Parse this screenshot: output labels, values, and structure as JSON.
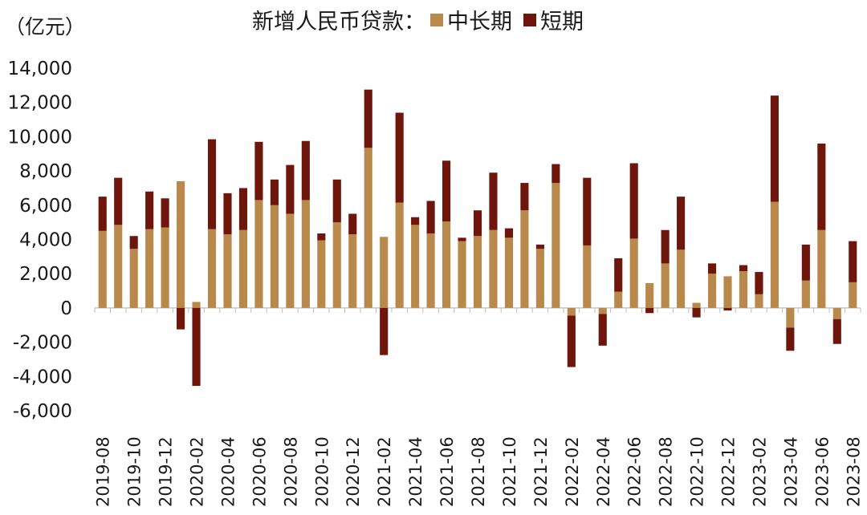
{
  "chart_data": {
    "type": "bar",
    "stacked": true,
    "title": "新增人民币贷款：",
    "unit_label": "（亿元）",
    "ylim": [
      -6000,
      14000
    ],
    "yticks": [
      14000,
      12000,
      10000,
      8000,
      6000,
      4000,
      2000,
      0,
      -2000,
      -4000,
      -6000
    ],
    "ytick_labels": [
      "14,000",
      "12,000",
      "10,000",
      "8,000",
      "6,000",
      "4,000",
      "2,000",
      "0",
      "-2,000",
      "-4,000",
      "-6,000"
    ],
    "categories": [
      "2019-08",
      "2019-09",
      "2019-10",
      "2019-11",
      "2019-12",
      "2020-01",
      "2020-02",
      "2020-03",
      "2020-04",
      "2020-05",
      "2020-06",
      "2020-07",
      "2020-08",
      "2020-09",
      "2020-10",
      "2020-11",
      "2020-12",
      "2021-01",
      "2021-02",
      "2021-03",
      "2021-04",
      "2021-05",
      "2021-06",
      "2021-07",
      "2021-08",
      "2021-09",
      "2021-10",
      "2021-11",
      "2021-12",
      "2022-01",
      "2022-02",
      "2022-03",
      "2022-04",
      "2022-05",
      "2022-06",
      "2022-07",
      "2022-08",
      "2022-09",
      "2022-10",
      "2022-11",
      "2022-12",
      "2023-01",
      "2023-02",
      "2023-03",
      "2023-04",
      "2023-05",
      "2023-06",
      "2023-07",
      "2023-08"
    ],
    "xtick_labels": [
      "2019-08",
      "2019-10",
      "2019-12",
      "2020-02",
      "2020-04",
      "2020-06",
      "2020-08",
      "2020-10",
      "2020-12",
      "2021-02",
      "2021-04",
      "2021-06",
      "2021-08",
      "2021-10",
      "2021-12",
      "2022-02",
      "2022-04",
      "2022-06",
      "2022-08",
      "2022-10",
      "2022-12",
      "2023-02",
      "2023-04",
      "2023-06",
      "2023-08"
    ],
    "legend_position": "top",
    "series": [
      {
        "name": "中长期",
        "color": "#b8894a",
        "values": [
          4500,
          4850,
          3450,
          4600,
          4700,
          7400,
          350,
          4600,
          4300,
          4550,
          6300,
          6000,
          5500,
          6300,
          3950,
          5000,
          4300,
          9350,
          4150,
          6150,
          4850,
          4350,
          5050,
          3900,
          4200,
          4550,
          4100,
          5700,
          3450,
          7300,
          -450,
          3650,
          -350,
          950,
          4050,
          1450,
          2600,
          3400,
          300,
          2000,
          1850,
          2150,
          800,
          6200,
          -1150,
          1600,
          4550,
          -650,
          1500
        ]
      },
      {
        "name": "短期",
        "color": "#6e160c",
        "values": [
          2000,
          2750,
          750,
          2200,
          1700,
          -1250,
          -4550,
          5250,
          2400,
          2450,
          3400,
          1500,
          2850,
          3450,
          400,
          2500,
          1200,
          3400,
          -2750,
          5250,
          450,
          1900,
          3550,
          200,
          1500,
          3350,
          550,
          1600,
          250,
          1100,
          -3000,
          3950,
          -1850,
          1950,
          4400,
          -300,
          1950,
          3100,
          -550,
          600,
          -150,
          350,
          1300,
          6200,
          -1350,
          2100,
          5050,
          -1450,
          2400
        ]
      }
    ]
  }
}
